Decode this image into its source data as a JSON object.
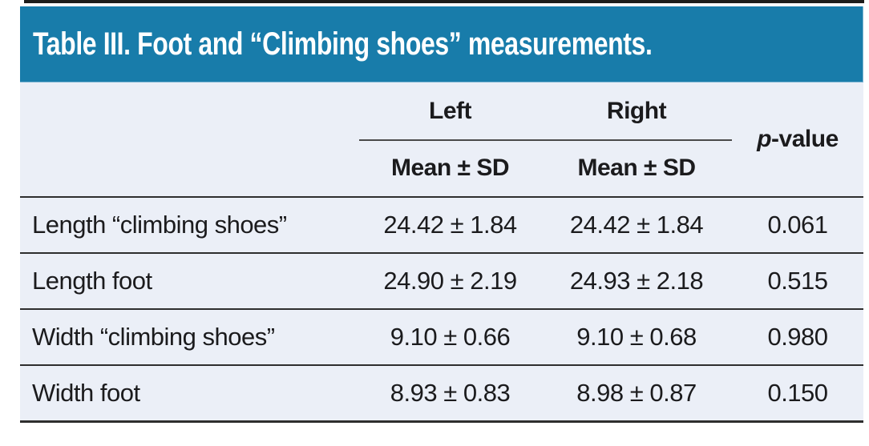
{
  "colors": {
    "header_bg": "#187caa",
    "body_bg": "#ebeff7",
    "rule_dark": "#2e2e2e",
    "title_text": "#ffffff",
    "body_text": "#1b1b1d"
  },
  "table": {
    "title": "Table III. Foot and “Climbing shoes” measurements.",
    "column_groups": {
      "left": "Left",
      "right": "Right"
    },
    "subheaders": {
      "left": "Mean ± SD",
      "right": "Mean ± SD"
    },
    "pvalue_header": {
      "italic": "p",
      "rest": "-value"
    },
    "rows": [
      {
        "label": "Length “climbing shoes”",
        "left": "24.42 ± 1.84",
        "right": "24.42 ± 1.84",
        "p": "0.061"
      },
      {
        "label": "Length foot",
        "left": "24.90 ± 2.19",
        "right": "24.93 ± 2.18",
        "p": "0.515"
      },
      {
        "label": "Width “climbing shoes”",
        "left": "9.10 ± 0.66",
        "right": "9.10 ± 0.68",
        "p": "0.980"
      },
      {
        "label": "Width foot",
        "left": "8.93 ± 0.83",
        "right": "8.98 ± 0.87",
        "p": "0.150"
      }
    ]
  }
}
